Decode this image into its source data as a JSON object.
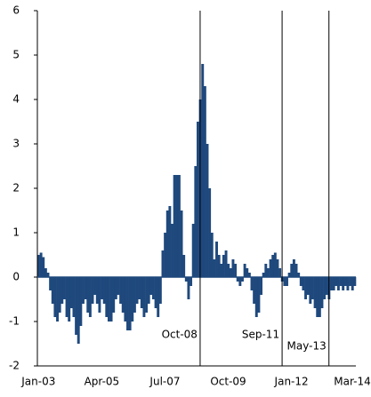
{
  "chart_data": {
    "type": "bar",
    "categories": [
      "Jan-03",
      null,
      null,
      null,
      null,
      null,
      null,
      null,
      null,
      null,
      null,
      null,
      null,
      null,
      null,
      null,
      null,
      null,
      null,
      null,
      null,
      null,
      null,
      null,
      null,
      null,
      null,
      "Apr-05",
      null,
      null,
      null,
      null,
      null,
      null,
      null,
      null,
      null,
      null,
      null,
      null,
      null,
      null,
      null,
      null,
      null,
      null,
      null,
      null,
      null,
      null,
      null,
      null,
      null,
      null,
      "Jul-07",
      null,
      null,
      null,
      null,
      null,
      null,
      null,
      null,
      null,
      null,
      null,
      null,
      null,
      null,
      null,
      null,
      null,
      null,
      null,
      null,
      null,
      null,
      null,
      null,
      null,
      null,
      "Oct-09",
      null,
      null,
      null,
      null,
      null,
      null,
      null,
      null,
      null,
      null,
      null,
      null,
      null,
      null,
      null,
      null,
      null,
      null,
      null,
      null,
      null,
      null,
      null,
      null,
      null,
      null,
      "Jan-12",
      null,
      null,
      null,
      null,
      null,
      null,
      null,
      null,
      null,
      null,
      null,
      null,
      null,
      null,
      null,
      null,
      null,
      null,
      null,
      null,
      null,
      null,
      null,
      null,
      null,
      "Mar-14",
      null
    ],
    "values": [
      0.5,
      0.55,
      0.45,
      0.2,
      0.1,
      -0.3,
      -0.6,
      -0.9,
      -1.0,
      -0.8,
      -0.6,
      -0.5,
      -0.9,
      -1.0,
      -0.7,
      -0.9,
      -1.3,
      -1.5,
      -1.1,
      -0.6,
      -0.5,
      -0.8,
      -0.9,
      -0.6,
      -0.4,
      -0.6,
      -0.8,
      -0.5,
      -0.6,
      -0.9,
      -1.0,
      -1.0,
      -0.8,
      -0.5,
      -0.4,
      -0.6,
      -0.8,
      -1.0,
      -1.2,
      -1.2,
      -1.0,
      -0.8,
      -0.6,
      -0.5,
      -0.7,
      -0.9,
      -0.8,
      -0.6,
      -0.4,
      -0.5,
      -0.7,
      -0.9,
      -0.6,
      0.6,
      1.0,
      1.5,
      1.6,
      1.2,
      2.3,
      2.3,
      2.3,
      1.5,
      0.5,
      -0.1,
      -0.5,
      -0.2,
      1.2,
      2.5,
      3.5,
      4.0,
      4.8,
      4.3,
      3.0,
      2.0,
      1.0,
      0.4,
      0.8,
      0.5,
      0.3,
      0.5,
      0.6,
      0.3,
      0.2,
      0.4,
      0.3,
      -0.1,
      -0.2,
      -0.1,
      0.3,
      0.2,
      0.1,
      -0.3,
      -0.6,
      -0.9,
      -0.8,
      -0.4,
      0.1,
      0.3,
      0.2,
      0.4,
      0.5,
      0.55,
      0.4,
      0.2,
      -0.1,
      -0.2,
      -0.2,
      0.1,
      0.3,
      0.4,
      0.3,
      0.1,
      -0.2,
      -0.3,
      -0.5,
      -0.4,
      -0.6,
      -0.5,
      -0.7,
      -0.9,
      -0.9,
      -0.7,
      -0.5,
      -0.4,
      -0.5,
      -0.3,
      -0.3,
      -0.2,
      -0.3,
      -0.2,
      -0.3,
      -0.2,
      -0.3,
      -0.2,
      -0.3,
      -0.2
    ],
    "color": "#1f497d",
    "ylim": [
      -2,
      6
    ],
    "yticks": [
      -2,
      -1,
      0,
      1,
      2,
      3,
      4,
      5,
      6
    ],
    "annotations": [
      {
        "label": "Oct-08"
      },
      {
        "label": "Sep-11"
      },
      {
        "label": "May-13"
      }
    ]
  }
}
